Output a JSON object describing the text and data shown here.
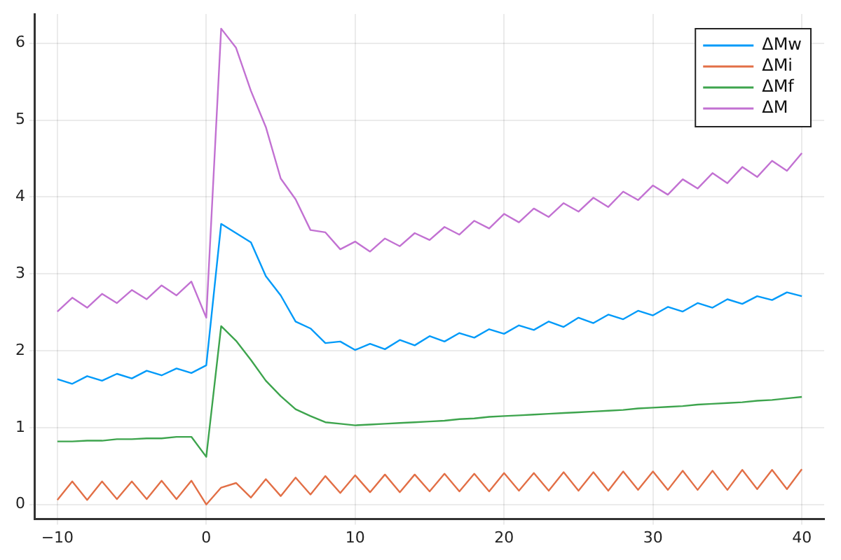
{
  "chart_data": {
    "type": "line",
    "x": [
      -10,
      -9,
      -8,
      -7,
      -6,
      -5,
      -4,
      -3,
      -2,
      -1,
      0,
      1,
      2,
      3,
      4,
      5,
      6,
      7,
      8,
      9,
      10,
      11,
      12,
      13,
      14,
      15,
      16,
      17,
      18,
      19,
      20,
      21,
      22,
      23,
      24,
      25,
      26,
      27,
      28,
      29,
      30,
      31,
      32,
      33,
      34,
      35,
      36,
      37,
      38,
      39,
      40
    ],
    "series": [
      {
        "name": "ΔMw",
        "color": "#009af9",
        "values": [
          1.63,
          1.57,
          1.67,
          1.61,
          1.7,
          1.64,
          1.74,
          1.68,
          1.77,
          1.71,
          1.81,
          3.65,
          3.53,
          3.41,
          2.97,
          2.72,
          2.38,
          2.29,
          2.1,
          2.12,
          2.01,
          2.09,
          2.02,
          2.14,
          2.07,
          2.19,
          2.12,
          2.23,
          2.17,
          2.28,
          2.22,
          2.33,
          2.27,
          2.38,
          2.31,
          2.43,
          2.36,
          2.47,
          2.41,
          2.52,
          2.46,
          2.57,
          2.51,
          2.62,
          2.56,
          2.67,
          2.61,
          2.71,
          2.66,
          2.76,
          2.71
        ]
      },
      {
        "name": "ΔMi",
        "color": "#e26f46",
        "values": [
          0.06,
          0.3,
          0.06,
          0.3,
          0.07,
          0.3,
          0.07,
          0.31,
          0.07,
          0.31,
          0.0,
          0.22,
          0.28,
          0.09,
          0.33,
          0.11,
          0.35,
          0.13,
          0.37,
          0.15,
          0.38,
          0.16,
          0.39,
          0.16,
          0.39,
          0.17,
          0.4,
          0.17,
          0.4,
          0.17,
          0.41,
          0.18,
          0.41,
          0.18,
          0.42,
          0.18,
          0.42,
          0.18,
          0.43,
          0.19,
          0.43,
          0.19,
          0.44,
          0.19,
          0.44,
          0.19,
          0.45,
          0.2,
          0.45,
          0.2,
          0.46
        ]
      },
      {
        "name": "ΔMf",
        "color": "#3da44d",
        "values": [
          0.82,
          0.82,
          0.83,
          0.83,
          0.85,
          0.85,
          0.86,
          0.86,
          0.88,
          0.88,
          0.62,
          2.32,
          2.13,
          1.88,
          1.61,
          1.41,
          1.24,
          1.15,
          1.07,
          1.05,
          1.03,
          1.04,
          1.05,
          1.06,
          1.07,
          1.08,
          1.09,
          1.11,
          1.12,
          1.14,
          1.15,
          1.16,
          1.17,
          1.18,
          1.19,
          1.2,
          1.21,
          1.22,
          1.23,
          1.25,
          1.26,
          1.27,
          1.28,
          1.3,
          1.31,
          1.32,
          1.33,
          1.35,
          1.36,
          1.38,
          1.4
        ]
      },
      {
        "name": "ΔM",
        "color": "#c271d2",
        "values": [
          2.51,
          2.69,
          2.56,
          2.74,
          2.62,
          2.79,
          2.67,
          2.85,
          2.72,
          2.9,
          2.43,
          6.19,
          5.94,
          5.38,
          4.91,
          4.24,
          3.97,
          3.57,
          3.54,
          3.32,
          3.42,
          3.29,
          3.46,
          3.36,
          3.53,
          3.44,
          3.61,
          3.51,
          3.69,
          3.59,
          3.78,
          3.67,
          3.85,
          3.74,
          3.92,
          3.81,
          3.99,
          3.87,
          4.07,
          3.96,
          4.15,
          4.03,
          4.23,
          4.11,
          4.31,
          4.18,
          4.39,
          4.26,
          4.47,
          4.34,
          4.57
        ]
      }
    ],
    "xlim": [
      -11.5,
      41.5
    ],
    "xticks": [
      -10,
      0,
      10,
      20,
      30,
      40
    ],
    "ylim": [
      -0.19,
      6.38
    ],
    "yticks": [
      0,
      1,
      2,
      3,
      4,
      5,
      6
    ],
    "grid": true,
    "legend": "top right",
    "marker": "none",
    "line_style": "solid"
  }
}
